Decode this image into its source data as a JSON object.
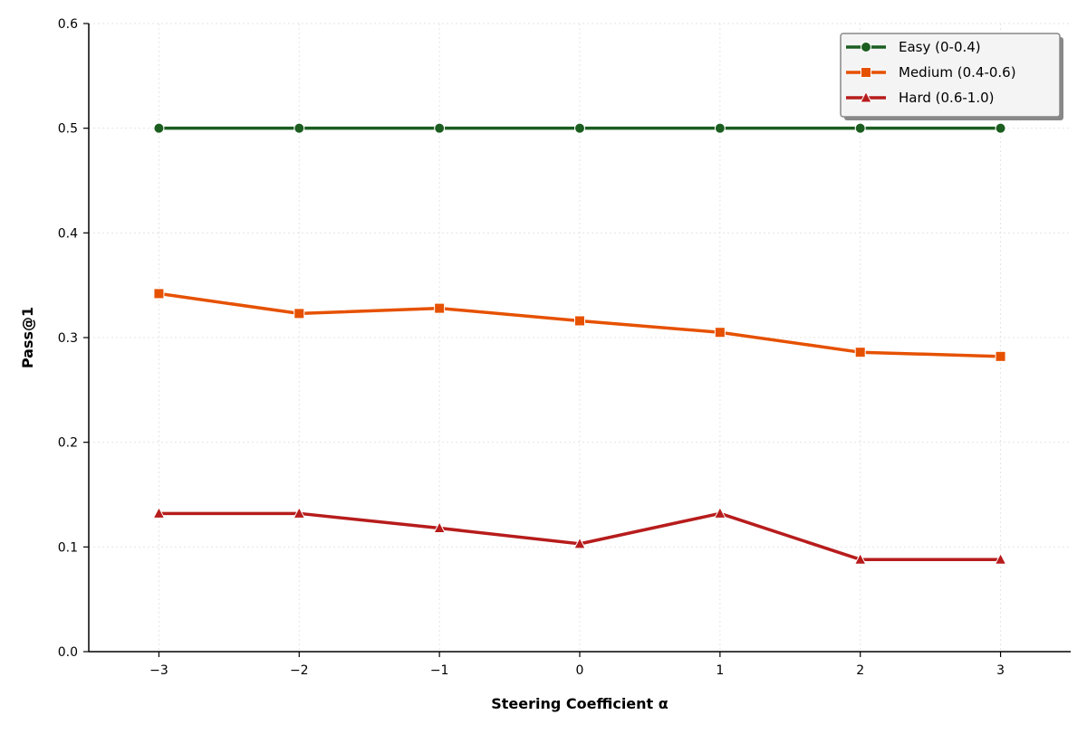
{
  "chart_data": {
    "type": "line",
    "title": "",
    "xlabel": "Steering Coefficient α",
    "ylabel": "Pass@1",
    "x": [
      -3,
      -2,
      -1,
      0,
      1,
      2,
      3
    ],
    "x_tick_labels": [
      "−3",
      "−2",
      "−1",
      "0",
      "1",
      "2",
      "3"
    ],
    "y_tick_labels": [
      "0.0",
      "0.1",
      "0.2",
      "0.3",
      "0.4",
      "0.5",
      "0.6"
    ],
    "xlim": [
      -3.5,
      3.5
    ],
    "ylim": [
      0,
      0.6
    ],
    "grid": true,
    "legend_position": "top-right",
    "series": [
      {
        "name": "Easy (0-0.4)",
        "color": "#1b5e20",
        "marker": "circle",
        "values": [
          0.5,
          0.5,
          0.5,
          0.5,
          0.5,
          0.5,
          0.5
        ]
      },
      {
        "name": "Medium (0.4-0.6)",
        "color": "#e65100",
        "marker": "square",
        "values": [
          0.342,
          0.323,
          0.328,
          0.316,
          0.305,
          0.286,
          0.282
        ]
      },
      {
        "name": "Hard (0.6-1.0)",
        "color": "#b71c1c",
        "marker": "triangle",
        "values": [
          0.132,
          0.132,
          0.118,
          0.103,
          0.132,
          0.088,
          0.088
        ]
      }
    ]
  }
}
